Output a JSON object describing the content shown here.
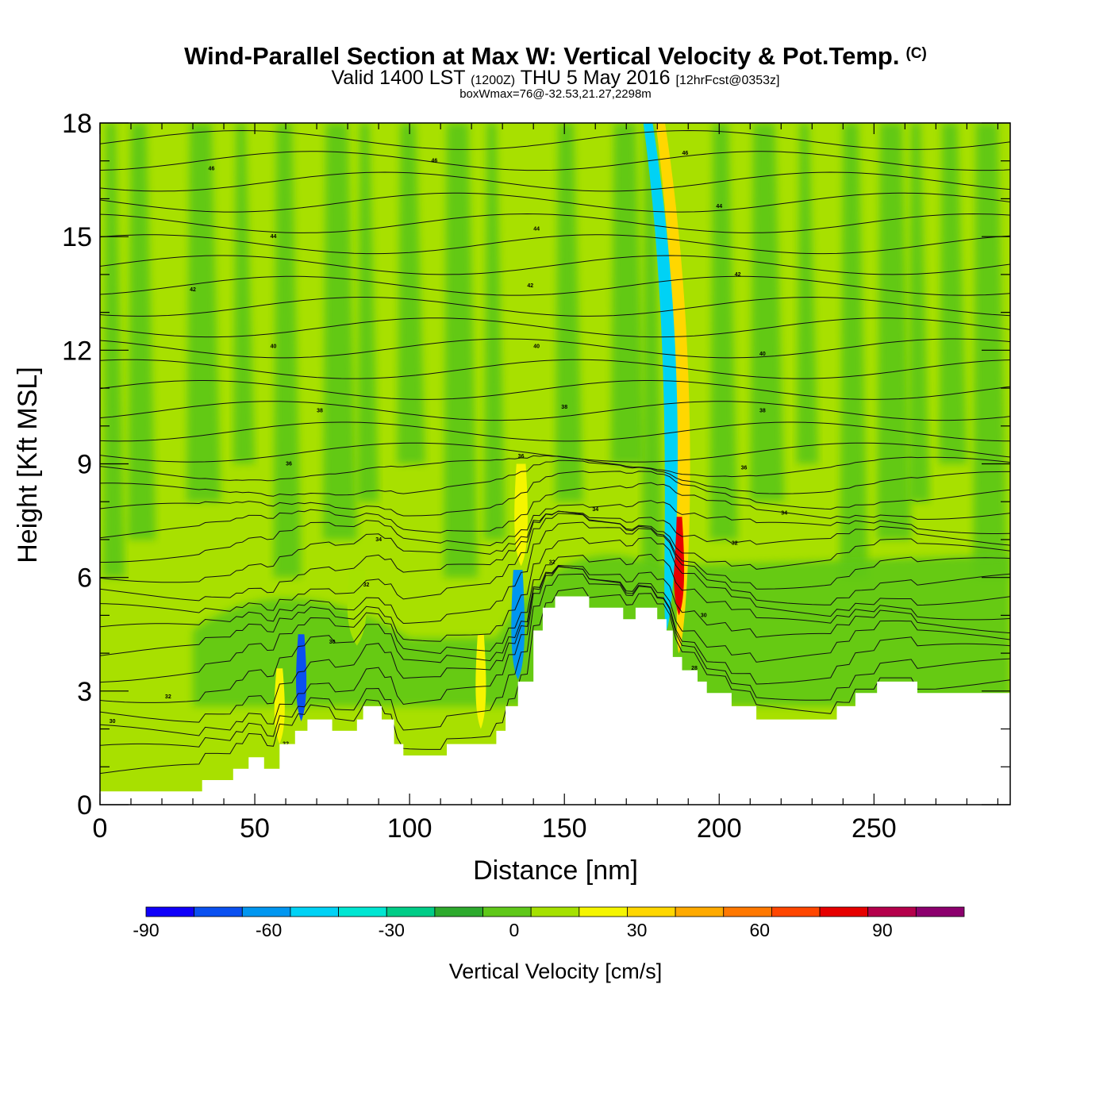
{
  "title": {
    "main": "Wind-Parallel Section at Max W: Vertical Velocity & Pot.Temp.",
    "copyright": "(C)",
    "valid_prefix": "Valid 1400 LST",
    "valid_utc": "(1200Z)",
    "valid_date": "THU 5 May 2016",
    "forecast": "[12hrFcst@0353z]",
    "box_wmax": "boxWmax=76@-32.53,21.27,2298m"
  },
  "chart_data": {
    "type": "heatmap",
    "title": "Wind-Parallel Section at Max W: Vertical Velocity & Pot.Temp.",
    "xlabel": "Distance [nm]",
    "ylabel": "Height [Kft MSL]",
    "xlim": [
      0,
      294
    ],
    "ylim": [
      0,
      18
    ],
    "x_ticks": [
      0,
      50,
      100,
      150,
      200,
      250
    ],
    "y_ticks": [
      0,
      3,
      6,
      9,
      12,
      15,
      18
    ],
    "colorbar": {
      "label": "Vertical Velocity [cm/s]",
      "range": [
        -90,
        110
      ],
      "ticks": [
        -90,
        -60,
        -30,
        0,
        30,
        60,
        90
      ],
      "colors": [
        "#0f00fa",
        "#0a50f0",
        "#0096f0",
        "#00d2f5",
        "#00e6d2",
        "#00cd87",
        "#2daa2d",
        "#5fc819",
        "#a5e100",
        "#f5f500",
        "#ffd700",
        "#ffaa00",
        "#ff7800",
        "#ff4600",
        "#e60000",
        "#b4004b",
        "#8c006e"
      ]
    },
    "terrain_kft": [
      [
        0,
        0.35
      ],
      [
        33,
        0.35
      ],
      [
        33,
        0.65
      ],
      [
        43,
        0.65
      ],
      [
        43,
        0.95
      ],
      [
        48,
        0.95
      ],
      [
        48,
        1.25
      ],
      [
        53,
        1.25
      ],
      [
        53,
        0.95
      ],
      [
        58,
        0.95
      ],
      [
        58,
        1.6
      ],
      [
        63,
        1.6
      ],
      [
        63,
        1.95
      ],
      [
        67,
        1.95
      ],
      [
        67,
        2.25
      ],
      [
        75,
        2.25
      ],
      [
        75,
        1.95
      ],
      [
        83,
        1.95
      ],
      [
        83,
        2.25
      ],
      [
        85,
        2.25
      ],
      [
        85,
        2.6
      ],
      [
        91,
        2.6
      ],
      [
        91,
        2.25
      ],
      [
        95,
        2.25
      ],
      [
        95,
        1.6
      ],
      [
        98,
        1.6
      ],
      [
        98,
        1.3
      ],
      [
        112,
        1.3
      ],
      [
        112,
        1.6
      ],
      [
        128,
        1.6
      ],
      [
        128,
        1.95
      ],
      [
        131,
        1.95
      ],
      [
        131,
        2.6
      ],
      [
        135,
        2.6
      ],
      [
        135,
        3.25
      ],
      [
        140,
        3.25
      ],
      [
        140,
        4.6
      ],
      [
        143,
        4.6
      ],
      [
        143,
        5.2
      ],
      [
        147,
        5.2
      ],
      [
        147,
        5.5
      ],
      [
        158,
        5.5
      ],
      [
        158,
        5.2
      ],
      [
        169,
        5.2
      ],
      [
        169,
        4.9
      ],
      [
        173,
        4.9
      ],
      [
        173,
        5.2
      ],
      [
        180,
        5.2
      ],
      [
        180,
        4.9
      ],
      [
        183,
        4.9
      ],
      [
        183,
        4.6
      ],
      [
        185,
        4.6
      ],
      [
        185,
        3.9
      ],
      [
        188,
        3.9
      ],
      [
        188,
        3.55
      ],
      [
        193,
        3.55
      ],
      [
        193,
        3.25
      ],
      [
        196,
        3.25
      ],
      [
        196,
        2.95
      ],
      [
        204,
        2.95
      ],
      [
        204,
        2.6
      ],
      [
        212,
        2.6
      ],
      [
        212,
        2.25
      ],
      [
        238,
        2.25
      ],
      [
        238,
        2.6
      ],
      [
        244,
        2.6
      ],
      [
        244,
        2.95
      ],
      [
        251,
        2.95
      ],
      [
        251,
        3.25
      ],
      [
        264,
        3.25
      ],
      [
        264,
        2.95
      ],
      [
        294,
        2.95
      ]
    ],
    "theta_contours": [
      {
        "value": "30",
        "x": 4,
        "height_kft": 2.2
      },
      {
        "value": "32",
        "x": 22,
        "height_kft": 2.85
      },
      {
        "value": "32",
        "x": 60,
        "height_kft": 1.6
      },
      {
        "value": "30",
        "x": 75,
        "height_kft": 4.3
      },
      {
        "value": "32",
        "x": 86,
        "height_kft": 5.8
      },
      {
        "value": "34",
        "x": 90,
        "height_kft": 7.0
      },
      {
        "value": "36",
        "x": 61,
        "height_kft": 9.0
      },
      {
        "value": "38",
        "x": 71,
        "height_kft": 10.4
      },
      {
        "value": "40",
        "x": 56,
        "height_kft": 12.1
      },
      {
        "value": "42",
        "x": 30,
        "height_kft": 13.6
      },
      {
        "value": "44",
        "x": 56,
        "height_kft": 15.0
      },
      {
        "value": "46",
        "x": 36,
        "height_kft": 16.8
      },
      {
        "value": "46",
        "x": 108,
        "height_kft": 17.0
      },
      {
        "value": "32",
        "x": 146,
        "height_kft": 6.4
      },
      {
        "value": "34",
        "x": 160,
        "height_kft": 7.8
      },
      {
        "value": "36",
        "x": 136,
        "height_kft": 9.2
      },
      {
        "value": "38",
        "x": 150,
        "height_kft": 10.5
      },
      {
        "value": "40",
        "x": 141,
        "height_kft": 12.1
      },
      {
        "value": "42",
        "x": 139,
        "height_kft": 13.7
      },
      {
        "value": "44",
        "x": 141,
        "height_kft": 15.2
      },
      {
        "value": "46",
        "x": 189,
        "height_kft": 17.2
      },
      {
        "value": "44",
        "x": 200,
        "height_kft": 15.8
      },
      {
        "value": "42",
        "x": 206,
        "height_kft": 14.0
      },
      {
        "value": "40",
        "x": 214,
        "height_kft": 11.9
      },
      {
        "value": "38",
        "x": 214,
        "height_kft": 10.4
      },
      {
        "value": "36",
        "x": 208,
        "height_kft": 8.9
      },
      {
        "value": "34",
        "x": 221,
        "height_kft": 7.7
      },
      {
        "value": "32",
        "x": 205,
        "height_kft": 6.9
      },
      {
        "value": "30",
        "x": 195,
        "height_kft": 5.0
      },
      {
        "value": "28",
        "x": 192,
        "height_kft": 3.6
      }
    ],
    "velocity_features": [
      {
        "x": 187,
        "x_width": 3,
        "height_from_kft": 4.0,
        "height_to_kft": 18,
        "w_cm_s": 30
      },
      {
        "x": 187,
        "x_width": 2,
        "height_from_kft": 5.0,
        "height_to_kft": 7.6,
        "w_cm_s": 80
      },
      {
        "x": 183,
        "x_width": 3,
        "height_from_kft": 4.6,
        "height_to_kft": 18,
        "w_cm_s": -45
      },
      {
        "x": 136,
        "x_width": 3,
        "height_from_kft": 6.3,
        "height_to_kft": 9.0,
        "w_cm_s": 20
      },
      {
        "x": 135,
        "x_width": 3,
        "height_from_kft": 3.3,
        "height_to_kft": 6.2,
        "w_cm_s": -55
      },
      {
        "x": 123,
        "x_width": 2,
        "height_from_kft": 2.0,
        "height_to_kft": 4.5,
        "w_cm_s": 25
      },
      {
        "x": 65,
        "x_width": 2,
        "height_from_kft": 2.2,
        "height_to_kft": 4.5,
        "w_cm_s": -70
      },
      {
        "x": 58,
        "x_width": 2,
        "height_from_kft": 1.6,
        "height_to_kft": 3.6,
        "w_cm_s": 25
      },
      {
        "x": 83,
        "x_width": 5,
        "height_from_kft": 4.2,
        "height_to_kft": 6.2,
        "w_cm_s": 15
      }
    ]
  }
}
